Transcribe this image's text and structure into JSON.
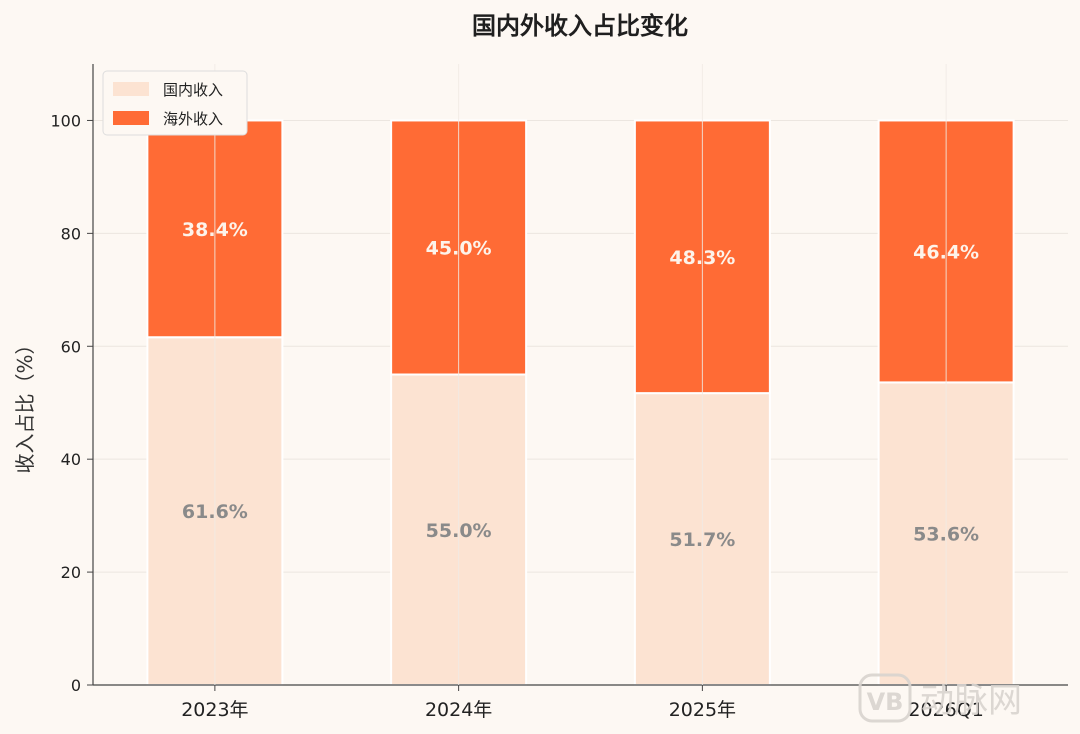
{
  "chart_data": {
    "type": "bar",
    "stacked": true,
    "title": "国内外收入占比变化",
    "ylabel": "收入占比（%）",
    "xlabel": "",
    "categories": [
      "2023年",
      "2024年",
      "2025年",
      "2026Q1"
    ],
    "ylim": [
      0,
      110
    ],
    "yticks": [
      0,
      20,
      40,
      60,
      80,
      100
    ],
    "series": [
      {
        "name": "国内收入",
        "values": [
          61.6,
          55.0,
          51.7,
          53.6
        ],
        "labels": [
          "61.6%",
          "55.0%",
          "51.7%",
          "53.6%"
        ],
        "color": "#fce3d2",
        "label_color": "#8a8a8a"
      },
      {
        "name": "海外收入",
        "values": [
          38.4,
          45.0,
          48.3,
          46.4
        ],
        "labels": [
          "38.4%",
          "45.0%",
          "48.3%",
          "46.4%"
        ],
        "color": "#ff6b35",
        "label_color": "#fdf3ea"
      }
    ],
    "grid": true,
    "legend_position": "top-left"
  },
  "watermark": {
    "text": "动脉网",
    "badge": "VB"
  }
}
